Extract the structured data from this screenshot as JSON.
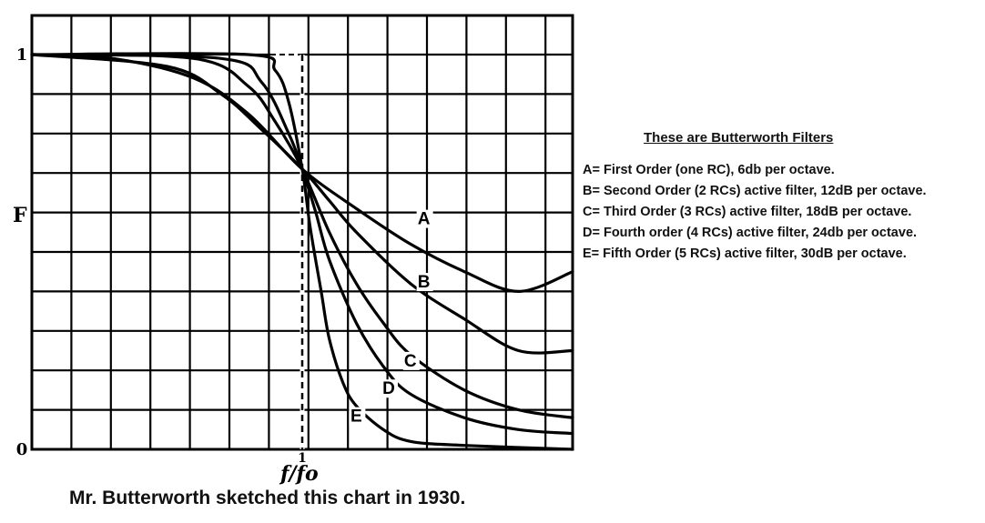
{
  "chart_data": {
    "type": "line",
    "title": "",
    "xlabel": "f/fo",
    "ylabel": "F",
    "x_range": [
      0,
      2.0
    ],
    "ylim": [
      0,
      1
    ],
    "x_ticks": [
      {
        "value": 1,
        "label": "1"
      }
    ],
    "y_ticks": [
      {
        "value": 0,
        "label": "0"
      },
      {
        "value": 1,
        "label": "1"
      }
    ],
    "grid": true,
    "cutoff_marker": {
      "x": 1,
      "style": "dashed"
    },
    "series": [
      {
        "name": "A",
        "order": 1,
        "label_at": [
          1.45,
          0.57
        ],
        "x": [
          0.0,
          0.3,
          0.6,
          0.8,
          1.0,
          1.2,
          1.4,
          1.6,
          1.8,
          2.0
        ],
        "values": [
          1.0,
          0.99,
          0.94,
          0.85,
          0.71,
          0.61,
          0.52,
          0.45,
          0.4,
          0.45
        ]
      },
      {
        "name": "B",
        "order": 2,
        "label_at": [
          1.45,
          0.41
        ],
        "x": [
          0.0,
          0.5,
          0.7,
          0.85,
          1.0,
          1.1,
          1.2,
          1.4,
          1.6,
          1.8,
          2.0
        ],
        "values": [
          1.0,
          0.97,
          0.9,
          0.81,
          0.71,
          0.63,
          0.55,
          0.42,
          0.33,
          0.25,
          0.25
        ]
      },
      {
        "name": "C",
        "order": 3,
        "label_at": [
          1.4,
          0.21
        ],
        "x": [
          0.0,
          0.6,
          0.8,
          0.9,
          1.0,
          1.1,
          1.2,
          1.3,
          1.4,
          1.6,
          1.8,
          2.0
        ],
        "values": [
          1.0,
          0.99,
          0.92,
          0.83,
          0.71,
          0.55,
          0.42,
          0.32,
          0.24,
          0.15,
          0.1,
          0.08
        ]
      },
      {
        "name": "D",
        "order": 4,
        "label_at": [
          1.32,
          0.14
        ],
        "x": [
          0.0,
          0.7,
          0.85,
          0.95,
          1.0,
          1.05,
          1.1,
          1.2,
          1.3,
          1.4,
          1.6,
          1.8,
          2.0
        ],
        "values": [
          1.0,
          0.99,
          0.93,
          0.8,
          0.71,
          0.6,
          0.48,
          0.32,
          0.21,
          0.14,
          0.08,
          0.05,
          0.04
        ]
      },
      {
        "name": "E",
        "order": 5,
        "label_at": [
          1.2,
          0.07
        ],
        "x": [
          0.0,
          0.8,
          0.9,
          0.95,
          1.0,
          1.03,
          1.07,
          1.1,
          1.15,
          1.2,
          1.3,
          1.4,
          1.6,
          2.0
        ],
        "values": [
          1.0,
          1.0,
          0.96,
          0.88,
          0.71,
          0.56,
          0.4,
          0.28,
          0.17,
          0.11,
          0.05,
          0.02,
          0.01,
          0.0
        ]
      }
    ]
  },
  "caption": "Mr. Butterworth sketched this chart in 1930.",
  "legend": {
    "title": "These are Butterworth Filters",
    "items": [
      "A= First Order (one RC), 6db per octave.",
      "B= Second Order (2 RCs) active filter, 12dB per octave.",
      "C= Third Order (3 RCs) active filter, 18dB per octave.",
      "D= Fourth order (4 RCs) active filter, 24db per octave.",
      "E= Fifth Order (5 RCs) active filter, 30dB per octave."
    ]
  }
}
